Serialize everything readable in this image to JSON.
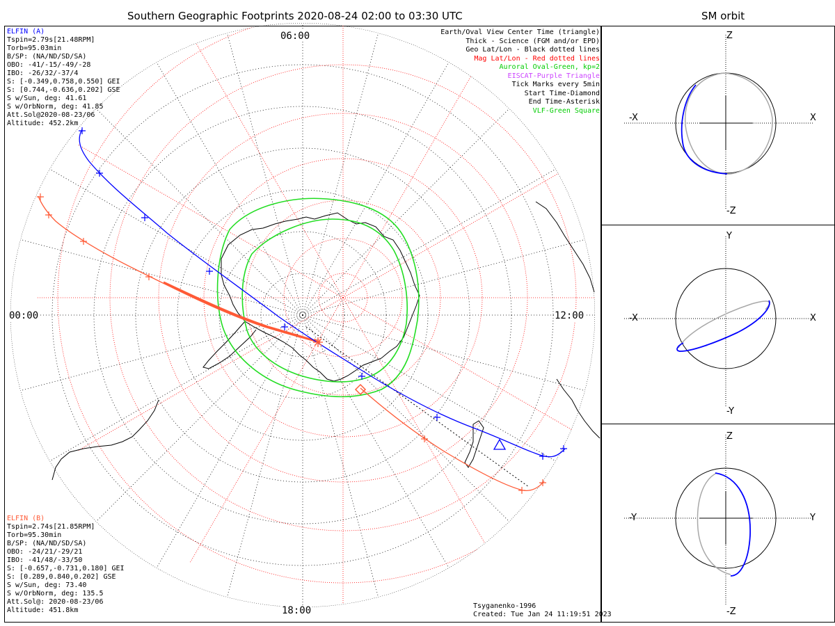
{
  "header": {
    "main_title": "Southern Geographic Footprints 2020-08-24 02:00 to 03:30 UTC",
    "side_title": "SM orbit"
  },
  "elfin_a": {
    "name": "ELFIN (A)",
    "color": "#0000ff",
    "lines": [
      "Tspin=2.79s[21.48RPM]",
      "Torb=95.03min",
      "B/SP: (NA/ND/SD/SA)",
      "OBO: -41/-15/-49/-28",
      "IBO: -26/32/-37/4",
      "S: [-0.349,0.758,0.550] GEI",
      "S: [0.744,-0.636,0.202] GSE",
      "S w/Sun, deg: 41.61",
      "S w/OrbNorm, deg: 41.85",
      "Att.Sol@2020-08-23/06",
      "Altitude: 452.2km"
    ]
  },
  "elfin_b": {
    "name": "ELFIN (B)",
    "color": "#ff5a36",
    "lines": [
      "Tspin=2.74s[21.85RPM]",
      "Torb=95.30min",
      "B/SP: (NA/ND/SD/SA)",
      "OBO: -24/21/-29/21",
      "IBO: -41/48/-33/50",
      "S: [-0.657,-0.731,0.180] GEI",
      "S: [0.289,0.840,0.202] GSE",
      "S w/Sun, deg: 73.40",
      "S w/OrbNorm, deg: 135.5",
      "Att.Sol@: 2020-08-23/06",
      "Altitude: 451.8km"
    ]
  },
  "legend": [
    {
      "text": "Earth/Oval View Center Time (triangle)",
      "color": "#000000"
    },
    {
      "text": "Thick - Science (FGM and/or EPD)",
      "color": "#000000"
    },
    {
      "text": "Geo Lat/Lon - Black dotted lines",
      "color": "#000000"
    },
    {
      "text": "Mag Lat/Lon - Red dotted lines",
      "color": "#ff0000"
    },
    {
      "text": "Auroral Oval-Green, kp=2",
      "color": "#00cc00"
    },
    {
      "text": "EISCAT-Purple Triangle",
      "color": "#cc44ff"
    },
    {
      "text": "Tick Marks every 5min",
      "color": "#000000"
    },
    {
      "text": "Start Time-Diamond",
      "color": "#000000"
    },
    {
      "text": "End Time-Asterisk",
      "color": "#000000"
    },
    {
      "text": "VLF-Green Square",
      "color": "#00cc00"
    }
  ],
  "map": {
    "time_labels": {
      "top": "06:00",
      "left": "00:00",
      "right": "12:00",
      "bottom": "18:00"
    }
  },
  "footer": {
    "model": "Tsyganenko-1996",
    "created": "Created: Tue Jan 24 11:19:51 2023"
  },
  "panels": [
    {
      "id": "xz",
      "top": "Z",
      "bottom": "-Z",
      "left": "-X",
      "right": "X"
    },
    {
      "id": "xy",
      "top": "Y",
      "bottom": "-Y",
      "left": "-X",
      "right": "X"
    },
    {
      "id": "yz",
      "top": "Z",
      "bottom": "-Z",
      "left": "-Y",
      "right": "Y"
    }
  ],
  "colors": {
    "elfin_a": "#0000ff",
    "elfin_b": "#ff5a36",
    "auroral_oval": "#22dd22",
    "geo_grid": "#000000",
    "mag_grid": "#ff0000",
    "orbit_gray": "#a8a8a8"
  }
}
